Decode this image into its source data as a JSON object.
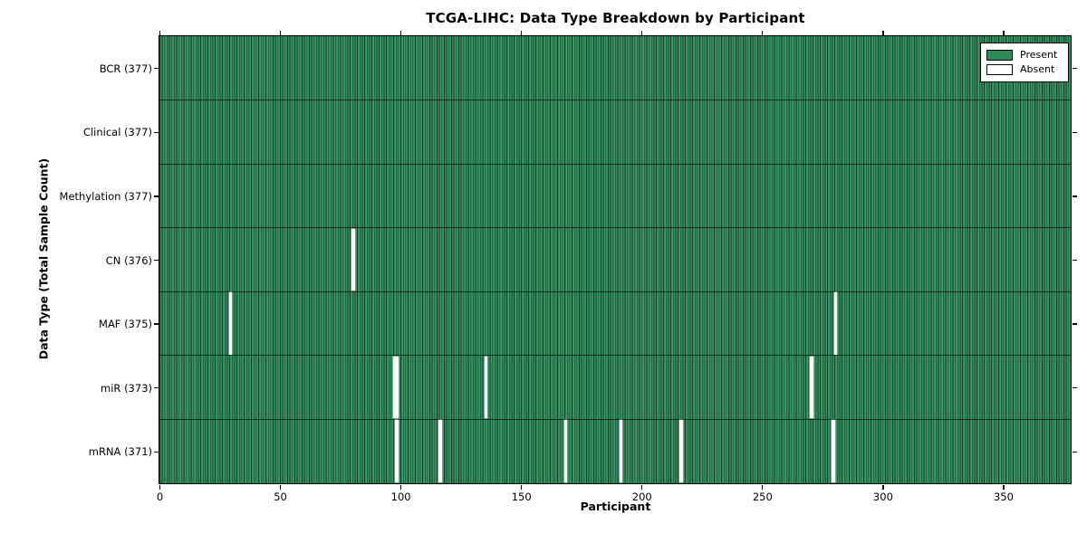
{
  "chart_data": {
    "type": "heatmap",
    "title": "TCGA-LIHC: Data Type Breakdown by Participant",
    "xlabel": "Participant",
    "ylabel": "Data Type (Total Sample Count)",
    "x_ticks": [
      0,
      50,
      100,
      150,
      200,
      250,
      300,
      350
    ],
    "x_range": [
      0,
      378
    ],
    "total_participants": 377,
    "legend": {
      "position": "upper-right",
      "entries": [
        {
          "label": "Present",
          "color": "#2e8b57"
        },
        {
          "label": "Absent",
          "color": "#ffffff"
        }
      ]
    },
    "rows": [
      {
        "label": "BCR (377)",
        "data_type": "BCR",
        "total_sample_count": 377,
        "absent_participants": []
      },
      {
        "label": "Clinical (377)",
        "data_type": "Clinical",
        "total_sample_count": 377,
        "absent_participants": []
      },
      {
        "label": "Methylation (377)",
        "data_type": "Methylation",
        "total_sample_count": 377,
        "absent_participants": []
      },
      {
        "label": "CN (376)",
        "data_type": "CN",
        "total_sample_count": 376,
        "absent_participants": [
          80
        ]
      },
      {
        "label": "MAF (375)",
        "data_type": "MAF",
        "total_sample_count": 375,
        "absent_participants": [
          29,
          280
        ]
      },
      {
        "label": "miR (373)",
        "data_type": "miR",
        "total_sample_count": 373,
        "absent_participants": [
          97,
          98,
          135,
          270
        ]
      },
      {
        "label": "mRNA (371)",
        "data_type": "mRNA",
        "total_sample_count": 371,
        "absent_participants": [
          98,
          116,
          168,
          191,
          216,
          279
        ]
      }
    ],
    "colors": {
      "present_fill": "#2e8b57",
      "present_fill_light": "#43986c",
      "bar_edge": "#153f29",
      "absent_fill": "#ffffff",
      "axis": "#000000"
    },
    "grid": false
  }
}
